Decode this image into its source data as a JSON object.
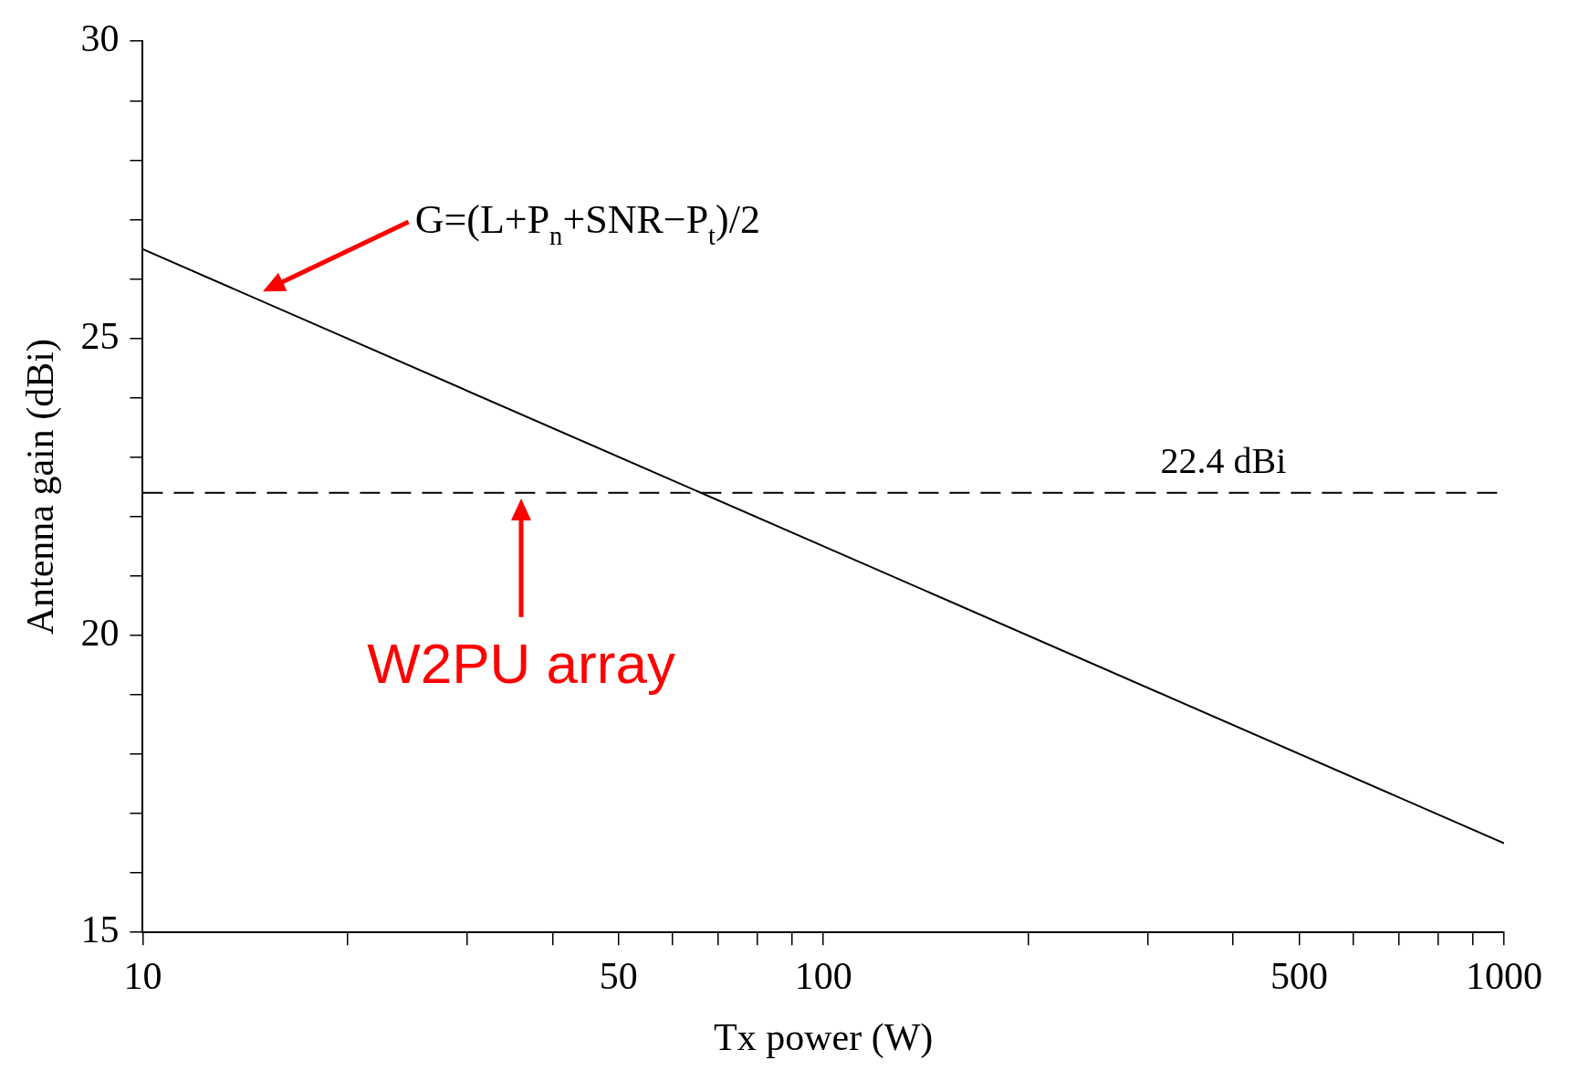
{
  "chart_data": {
    "type": "line",
    "xlabel": "Tx power (W)",
    "ylabel": "Antenna gain (dBi)",
    "log": "x",
    "x": [
      10,
      1000
    ],
    "series": [
      {
        "color": "#000000",
        "values": [
          26.5,
          16.5
        ]
      }
    ],
    "xlim": [
      10,
      1000
    ],
    "xticks": [
      10,
      {
        "value": 20,
        "label": null
      },
      {
        "value": 30,
        "label": null
      },
      {
        "value": 40,
        "label": null
      },
      50,
      {
        "value": 60,
        "label": null
      },
      {
        "value": 70,
        "label": null
      },
      {
        "value": 80,
        "label": null
      },
      {
        "value": 90,
        "label": null
      },
      100,
      {
        "value": 200,
        "label": null
      },
      {
        "value": 300,
        "label": null
      },
      {
        "value": 400,
        "label": null
      },
      500,
      {
        "value": 600,
        "label": null
      },
      {
        "value": 700,
        "label": null
      },
      {
        "value": 800,
        "label": null
      },
      {
        "value": 900,
        "label": null
      },
      1000
    ],
    "ylim": [
      15,
      30
    ],
    "yticks": [
      15,
      {
        "value": 16,
        "label": null
      },
      {
        "value": 17,
        "label": null
      },
      {
        "value": 18,
        "label": null
      },
      {
        "value": 19,
        "label": null
      },
      20,
      {
        "value": 21,
        "label": null
      },
      {
        "value": 22,
        "label": null
      },
      {
        "value": 23,
        "label": null
      },
      {
        "value": 24,
        "label": null
      },
      25,
      {
        "value": 26,
        "label": null
      },
      {
        "value": 27,
        "label": null
      },
      {
        "value": 28,
        "label": null
      },
      {
        "value": 29,
        "label": null
      },
      30
    ],
    "ref_lines": [
      {
        "axis": "y",
        "value": 22.4,
        "label": "22.4 dBi",
        "color": "#000000",
        "line_style": "dashed"
      }
    ],
    "annotations": [
      "G=(L+P$_{n}$+SNR−P$_{t}$)/2",
      "W2PU array"
    ],
    "grid": false,
    "legend": false,
    "marker": "none",
    "line_style": "solid"
  }
}
